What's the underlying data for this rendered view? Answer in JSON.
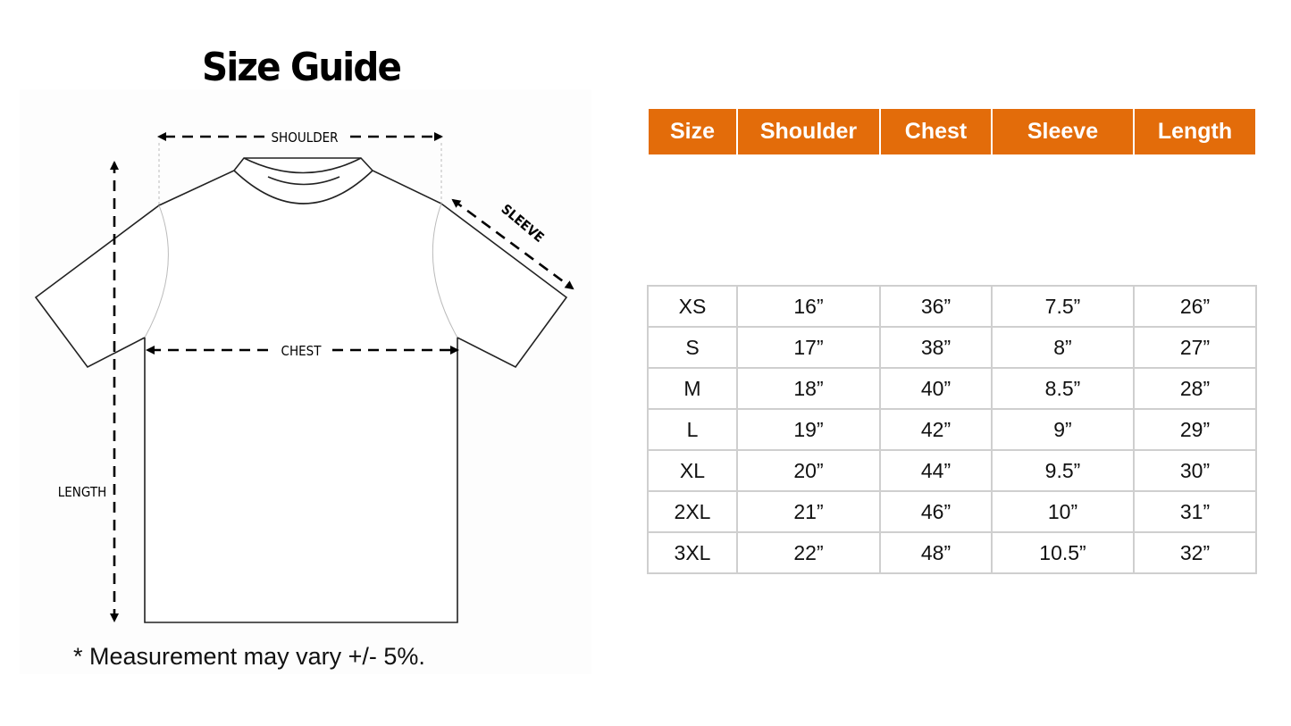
{
  "title": "Size Guide",
  "diagram_labels": {
    "shoulder": "SHOULDER",
    "chest": "CHEST",
    "sleeve": "SLEEVE",
    "length": "LENGTH"
  },
  "note": "* Measurement may vary +/- 5%.",
  "colors": {
    "header_bg": "#e36c0a",
    "header_text": "#ffffff",
    "grid": "#cfcfcf"
  },
  "table": {
    "headers": [
      "Size",
      "Shoulder",
      "Chest",
      "Sleeve",
      "Length"
    ],
    "rows": [
      [
        "XS",
        "16”",
        "36”",
        "7.5”",
        "26”"
      ],
      [
        "S",
        "17”",
        "38”",
        "8”",
        "27”"
      ],
      [
        "M",
        "18”",
        "40”",
        "8.5”",
        "28”"
      ],
      [
        "L",
        "19”",
        "42”",
        "9”",
        "29”"
      ],
      [
        "XL",
        "20”",
        "44”",
        "9.5”",
        "30”"
      ],
      [
        "2XL",
        "21”",
        "46”",
        "10”",
        "31”"
      ],
      [
        "3XL",
        "22”",
        "48”",
        "10.5”",
        "32”"
      ]
    ]
  }
}
